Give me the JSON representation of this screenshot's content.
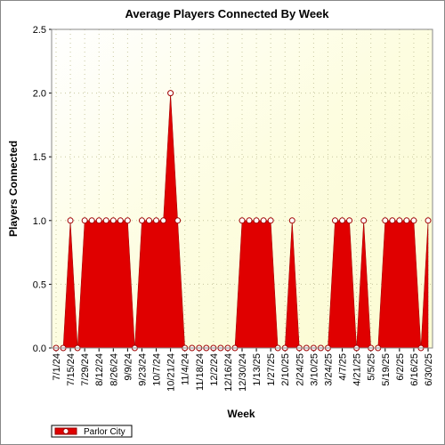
{
  "chart_data": {
    "type": "area",
    "title": "Average Players Connected By Week",
    "x_label": "Week",
    "y_label": "Players Connected",
    "categories": [
      "7/1/24",
      null,
      "7/15/24",
      null,
      "7/29/24",
      null,
      "8/12/24",
      null,
      "8/26/24",
      null,
      "9/9/24",
      null,
      "9/23/24",
      null,
      "10/7/24",
      null,
      "10/21/24",
      null,
      "11/4/24",
      null,
      "11/18/24",
      null,
      "12/2/24",
      null,
      "12/16/24",
      null,
      "12/30/24",
      null,
      "1/13/25",
      null,
      "1/27/25",
      null,
      "2/10/25",
      null,
      "2/24/25",
      null,
      "3/10/25",
      null,
      "3/24/25",
      null,
      "4/7/25",
      null,
      "4/21/25",
      null,
      "5/5/25",
      null,
      "5/19/25",
      null,
      "6/2/25",
      null,
      "6/16/25",
      null,
      "6/30/25"
    ],
    "series": [
      {
        "name": "Parlor City",
        "color": "#e00000",
        "values": [
          0,
          0,
          1,
          0,
          1,
          1,
          1,
          1,
          1,
          1,
          1,
          0,
          1,
          1,
          1,
          1,
          2,
          1,
          0,
          0,
          0,
          0,
          0,
          0,
          0,
          0,
          1,
          1,
          1,
          1,
          1,
          0,
          0,
          1,
          0,
          0,
          0,
          0,
          0,
          1,
          1,
          1,
          0,
          1,
          0,
          0,
          1,
          1,
          1,
          1,
          1,
          0,
          1
        ]
      }
    ],
    "ylim": [
      0,
      2.5
    ],
    "yticks": [
      {
        "value": 0,
        "label": "0.0"
      },
      {
        "value": 0.5,
        "label": "0.5"
      },
      {
        "value": 1,
        "label": "1.0"
      },
      {
        "value": 1.5,
        "label": "1.5"
      },
      {
        "value": 2,
        "label": "2.0"
      },
      {
        "value": 2.5,
        "label": "2.5"
      }
    ],
    "grid": true,
    "legend": "bottom-left"
  }
}
